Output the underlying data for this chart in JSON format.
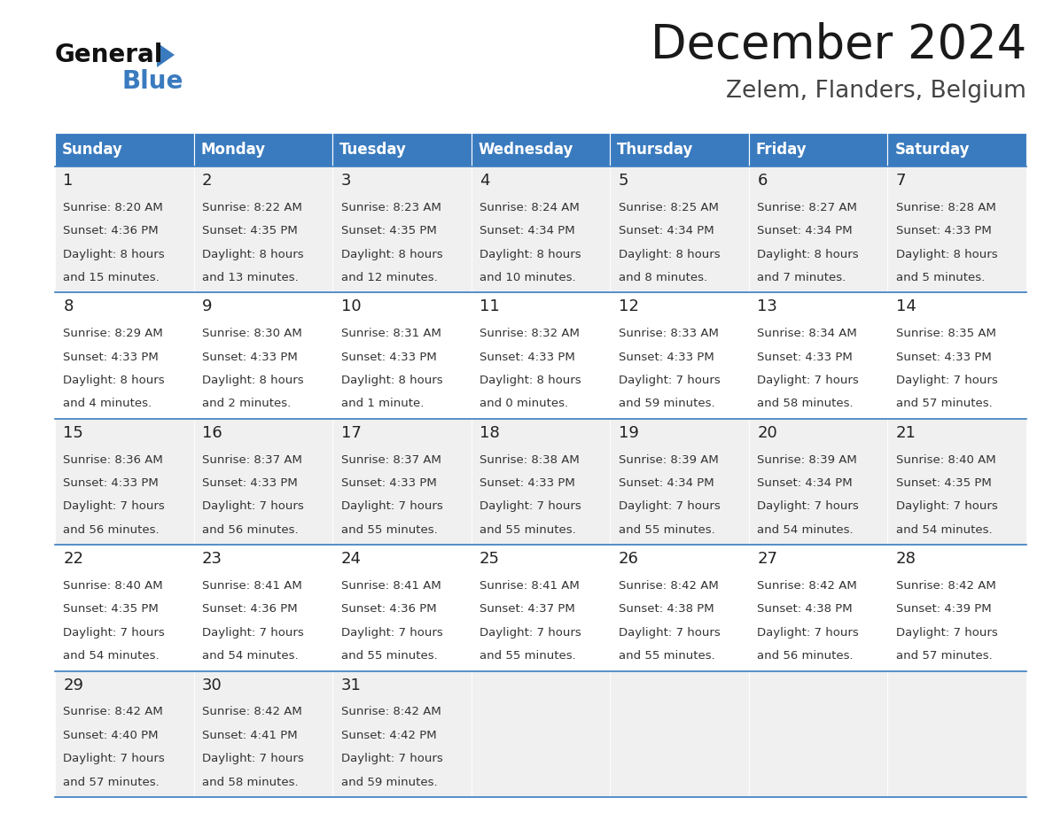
{
  "title": "December 2024",
  "subtitle": "Zelem, Flanders, Belgium",
  "header_color": "#3a7bbf",
  "header_text_color": "#ffffff",
  "cell_bg_odd": "#f0f0f0",
  "cell_bg_even": "#ffffff",
  "day_names": [
    "Sunday",
    "Monday",
    "Tuesday",
    "Wednesday",
    "Thursday",
    "Friday",
    "Saturday"
  ],
  "weeks": [
    [
      {
        "day": "1",
        "sunrise": "8:20 AM",
        "sunset": "4:36 PM",
        "daylight_hours": "8",
        "daylight_mins": "15 minutes."
      },
      {
        "day": "2",
        "sunrise": "8:22 AM",
        "sunset": "4:35 PM",
        "daylight_hours": "8",
        "daylight_mins": "13 minutes."
      },
      {
        "day": "3",
        "sunrise": "8:23 AM",
        "sunset": "4:35 PM",
        "daylight_hours": "8",
        "daylight_mins": "12 minutes."
      },
      {
        "day": "4",
        "sunrise": "8:24 AM",
        "sunset": "4:34 PM",
        "daylight_hours": "8",
        "daylight_mins": "10 minutes."
      },
      {
        "day": "5",
        "sunrise": "8:25 AM",
        "sunset": "4:34 PM",
        "daylight_hours": "8",
        "daylight_mins": "8 minutes."
      },
      {
        "day": "6",
        "sunrise": "8:27 AM",
        "sunset": "4:34 PM",
        "daylight_hours": "8",
        "daylight_mins": "7 minutes."
      },
      {
        "day": "7",
        "sunrise": "8:28 AM",
        "sunset": "4:33 PM",
        "daylight_hours": "8",
        "daylight_mins": "5 minutes."
      }
    ],
    [
      {
        "day": "8",
        "sunrise": "8:29 AM",
        "sunset": "4:33 PM",
        "daylight_hours": "8",
        "daylight_mins": "4 minutes."
      },
      {
        "day": "9",
        "sunrise": "8:30 AM",
        "sunset": "4:33 PM",
        "daylight_hours": "8",
        "daylight_mins": "2 minutes."
      },
      {
        "day": "10",
        "sunrise": "8:31 AM",
        "sunset": "4:33 PM",
        "daylight_hours": "8",
        "daylight_mins": "1 minute."
      },
      {
        "day": "11",
        "sunrise": "8:32 AM",
        "sunset": "4:33 PM",
        "daylight_hours": "8",
        "daylight_mins": "0 minutes."
      },
      {
        "day": "12",
        "sunrise": "8:33 AM",
        "sunset": "4:33 PM",
        "daylight_hours": "7",
        "daylight_mins": "59 minutes."
      },
      {
        "day": "13",
        "sunrise": "8:34 AM",
        "sunset": "4:33 PM",
        "daylight_hours": "7",
        "daylight_mins": "58 minutes."
      },
      {
        "day": "14",
        "sunrise": "8:35 AM",
        "sunset": "4:33 PM",
        "daylight_hours": "7",
        "daylight_mins": "57 minutes."
      }
    ],
    [
      {
        "day": "15",
        "sunrise": "8:36 AM",
        "sunset": "4:33 PM",
        "daylight_hours": "7",
        "daylight_mins": "56 minutes."
      },
      {
        "day": "16",
        "sunrise": "8:37 AM",
        "sunset": "4:33 PM",
        "daylight_hours": "7",
        "daylight_mins": "56 minutes."
      },
      {
        "day": "17",
        "sunrise": "8:37 AM",
        "sunset": "4:33 PM",
        "daylight_hours": "7",
        "daylight_mins": "55 minutes."
      },
      {
        "day": "18",
        "sunrise": "8:38 AM",
        "sunset": "4:33 PM",
        "daylight_hours": "7",
        "daylight_mins": "55 minutes."
      },
      {
        "day": "19",
        "sunrise": "8:39 AM",
        "sunset": "4:34 PM",
        "daylight_hours": "7",
        "daylight_mins": "55 minutes."
      },
      {
        "day": "20",
        "sunrise": "8:39 AM",
        "sunset": "4:34 PM",
        "daylight_hours": "7",
        "daylight_mins": "54 minutes."
      },
      {
        "day": "21",
        "sunrise": "8:40 AM",
        "sunset": "4:35 PM",
        "daylight_hours": "7",
        "daylight_mins": "54 minutes."
      }
    ],
    [
      {
        "day": "22",
        "sunrise": "8:40 AM",
        "sunset": "4:35 PM",
        "daylight_hours": "7",
        "daylight_mins": "54 minutes."
      },
      {
        "day": "23",
        "sunrise": "8:41 AM",
        "sunset": "4:36 PM",
        "daylight_hours": "7",
        "daylight_mins": "54 minutes."
      },
      {
        "day": "24",
        "sunrise": "8:41 AM",
        "sunset": "4:36 PM",
        "daylight_hours": "7",
        "daylight_mins": "55 minutes."
      },
      {
        "day": "25",
        "sunrise": "8:41 AM",
        "sunset": "4:37 PM",
        "daylight_hours": "7",
        "daylight_mins": "55 minutes."
      },
      {
        "day": "26",
        "sunrise": "8:42 AM",
        "sunset": "4:38 PM",
        "daylight_hours": "7",
        "daylight_mins": "55 minutes."
      },
      {
        "day": "27",
        "sunrise": "8:42 AM",
        "sunset": "4:38 PM",
        "daylight_hours": "7",
        "daylight_mins": "56 minutes."
      },
      {
        "day": "28",
        "sunrise": "8:42 AM",
        "sunset": "4:39 PM",
        "daylight_hours": "7",
        "daylight_mins": "57 minutes."
      }
    ],
    [
      {
        "day": "29",
        "sunrise": "8:42 AM",
        "sunset": "4:40 PM",
        "daylight_hours": "7",
        "daylight_mins": "57 minutes."
      },
      {
        "day": "30",
        "sunrise": "8:42 AM",
        "sunset": "4:41 PM",
        "daylight_hours": "7",
        "daylight_mins": "58 minutes."
      },
      {
        "day": "31",
        "sunrise": "8:42 AM",
        "sunset": "4:42 PM",
        "daylight_hours": "7",
        "daylight_mins": "59 minutes."
      },
      null,
      null,
      null,
      null
    ]
  ],
  "logo_text_general": "General",
  "logo_text_blue": "Blue",
  "logo_triangle_color": "#3a7bbf",
  "title_fontsize": 38,
  "subtitle_fontsize": 19,
  "header_fontsize": 12,
  "daynum_fontsize": 13,
  "cell_fontsize": 9.5
}
